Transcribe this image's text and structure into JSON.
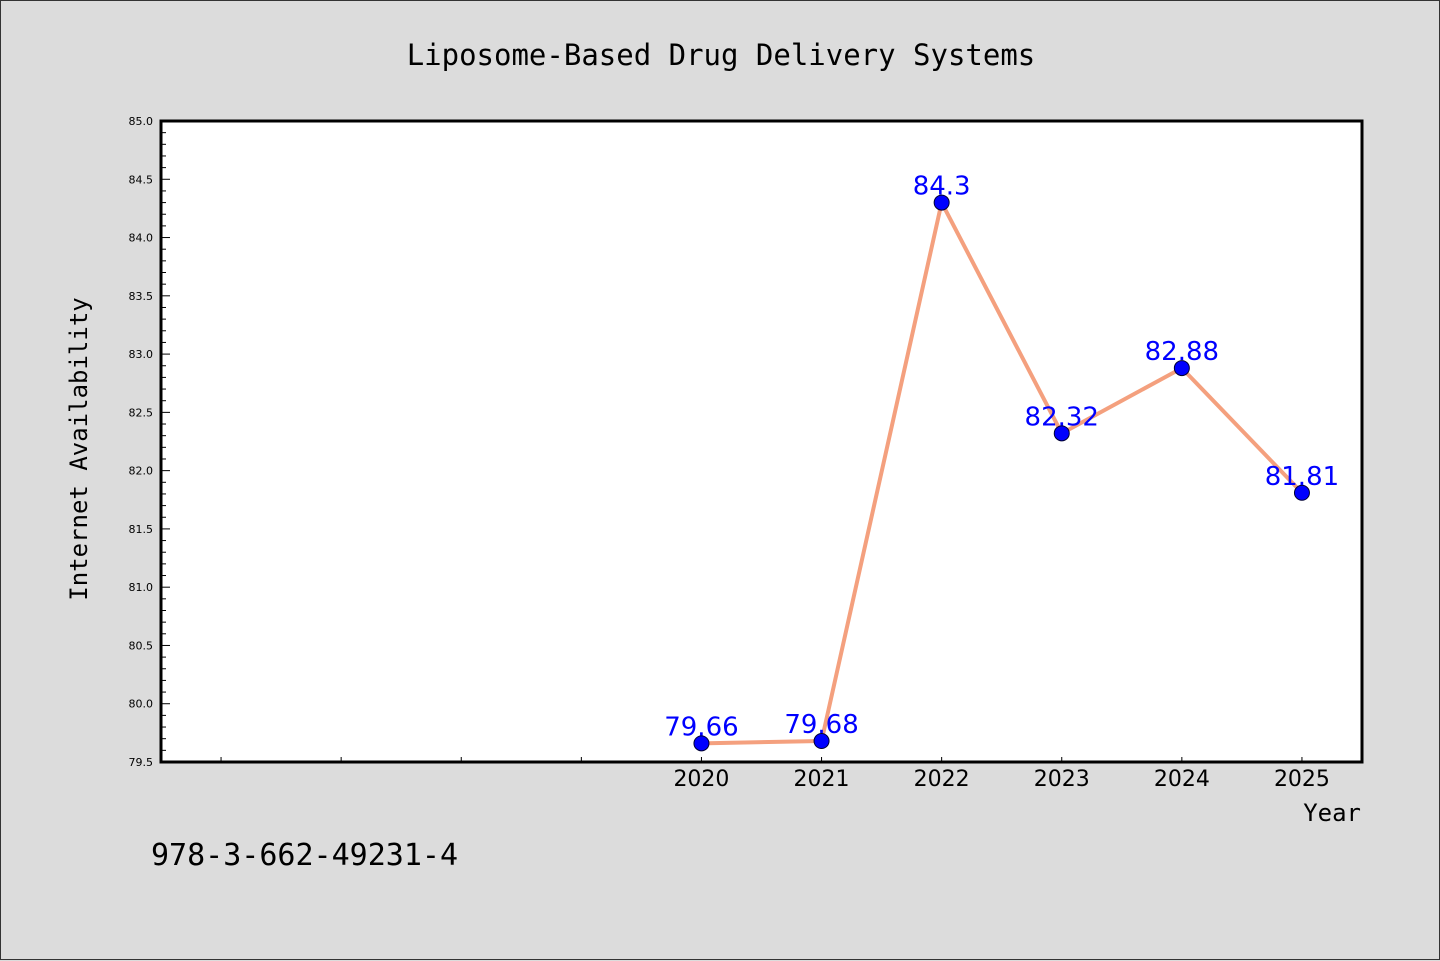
{
  "chart_data": {
    "type": "line",
    "title": "Liposome-Based Drug Delivery Systems",
    "xlabel": "Year",
    "ylabel": "Internet Availability",
    "footnote": "978-3-662-49231-4",
    "x": [
      2020,
      2021,
      2022,
      2023,
      2024,
      2025
    ],
    "series": [
      {
        "values": [
          79.66,
          79.68,
          84.3,
          82.32,
          82.88,
          81.81
        ],
        "labels": [
          "79.66",
          "79.68",
          "84.3",
          "82.32",
          "82.88",
          "81.81"
        ]
      }
    ],
    "xticks": [
      "2020",
      "2021",
      "2022",
      "2023",
      "2024",
      "2025"
    ],
    "yticks": [
      "79.5",
      "80.0",
      "80.5",
      "81.0",
      "81.5",
      "82.0",
      "82.5",
      "83.0",
      "83.5",
      "84.0",
      "84.5",
      "85.0"
    ],
    "xlim": [
      2015.5,
      2025.5
    ],
    "ylim": [
      79.5,
      85.0
    ],
    "grid": false,
    "colors": {
      "line": "#f4a07e",
      "marker": "#0000ff",
      "label": "#0000ff",
      "background": "#dcdcdc",
      "plot_background": "#ffffff"
    }
  }
}
